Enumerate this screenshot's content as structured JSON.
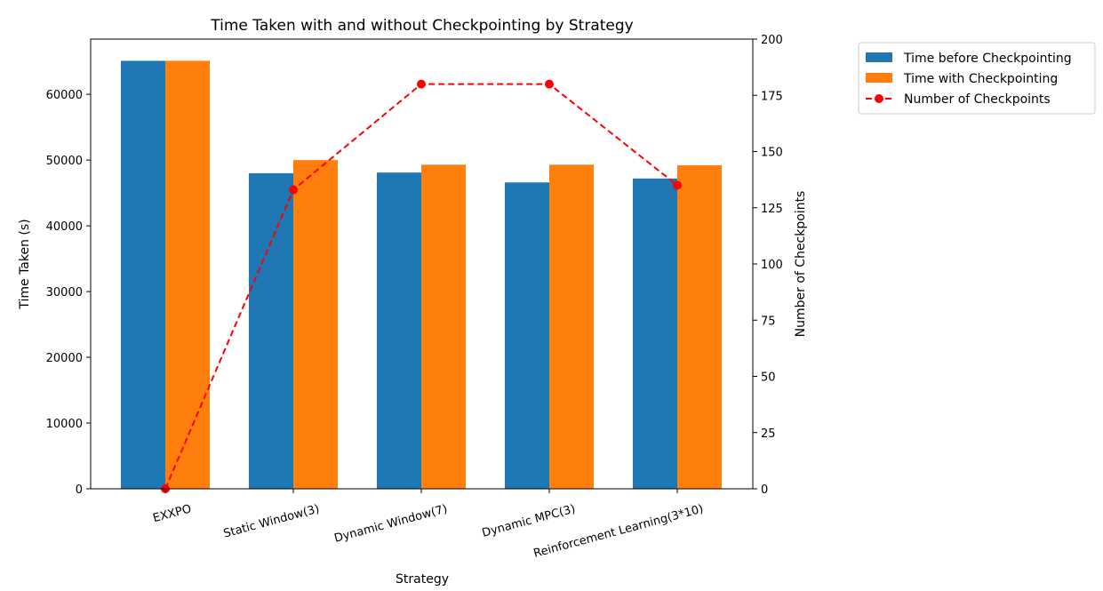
{
  "chart_data": {
    "type": "bar",
    "title": "Time Taken with and without Checkpointing by Strategy",
    "xlabel": "Strategy",
    "ylabel": "Time Taken (s)",
    "y2label": "Number of Checkpoints",
    "categories": [
      "EXXPO",
      "Static Window(3)",
      "Dynamic Window(7)",
      "Dynamic MPC(3)",
      "Reinforcement Learning(3*10)"
    ],
    "series": [
      {
        "name": "Time before Checkpointing",
        "kind": "bar",
        "axis": "left",
        "color": "#1f77b4",
        "values": [
          65100,
          48000,
          48100,
          46600,
          47200
        ]
      },
      {
        "name": "Time with Checkpointing",
        "kind": "bar",
        "axis": "left",
        "color": "#ff7f0e",
        "values": [
          65100,
          50000,
          49300,
          49300,
          49200
        ]
      },
      {
        "name": "Number of Checkpoints",
        "kind": "line",
        "axis": "right",
        "color": "#ff0000",
        "line_style": "dashed",
        "marker": "circle",
        "values": [
          0,
          133,
          180,
          180,
          135
        ]
      }
    ],
    "ylim": [
      0,
      68400
    ],
    "y2lim": [
      0,
      200
    ],
    "yticks": [
      "0",
      "10000",
      "20000",
      "30000",
      "40000",
      "50000",
      "60000"
    ],
    "y2ticks": [
      "0",
      "25",
      "50",
      "75",
      "100",
      "125",
      "150",
      "175",
      "200"
    ],
    "legend_position": "outside-right",
    "grid": false
  }
}
